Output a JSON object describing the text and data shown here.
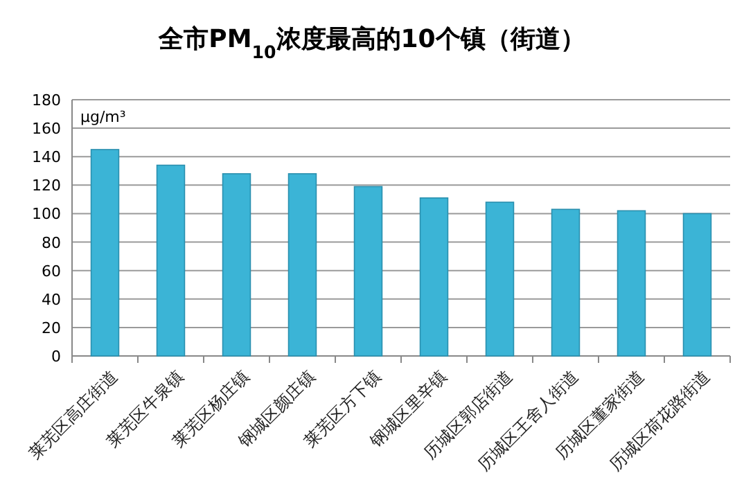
{
  "chart_data": {
    "type": "bar",
    "title": "全市PM$_{10}$浓度最高的10个镇（街道）",
    "ylabel": "μg/m³",
    "categories": [
      "莱芜区高庄街道",
      "莱芜区牛泉镇",
      "莱芜区杨庄镇",
      "钢城区颜庄镇",
      "莱芜区方下镇",
      "钢城区里辛镇",
      "历城区郭店街道",
      "历城区王舍人街道",
      "历城区董家街道",
      "历城区荷花路街道"
    ],
    "values": [
      145,
      134,
      128,
      128,
      119,
      111,
      108,
      103,
      102,
      100
    ],
    "color": "#3bb4d6",
    "ylim": [
      0,
      180
    ],
    "yticks": [
      0,
      20,
      40,
      60,
      80,
      100,
      120,
      140,
      160,
      180
    ],
    "grid": "y"
  }
}
